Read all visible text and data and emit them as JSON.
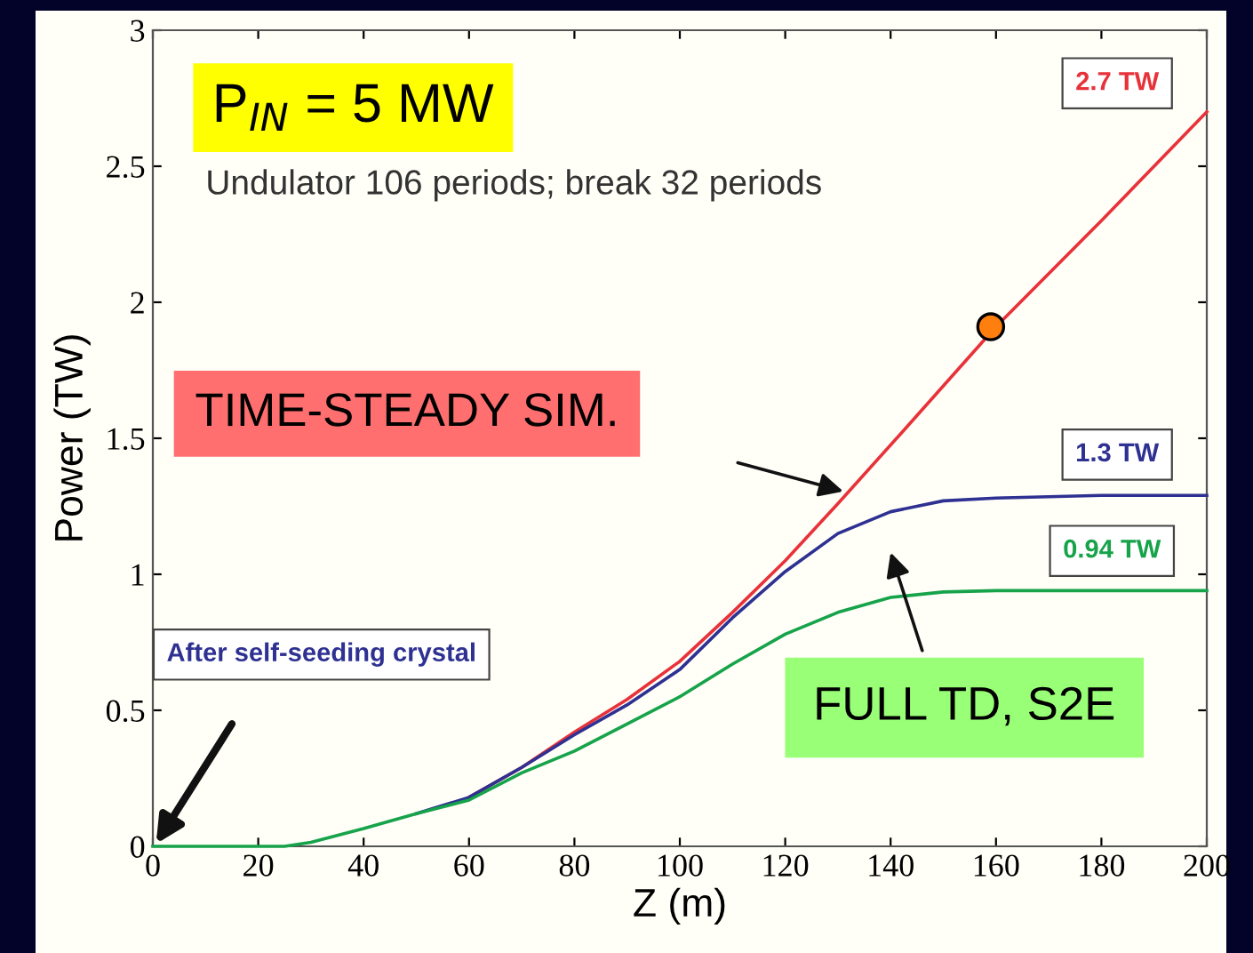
{
  "chart_data": {
    "type": "line",
    "xlabel": "Z (m)",
    "ylabel": "Power (TW)",
    "xlim": [
      0,
      200
    ],
    "ylim": [
      0,
      3
    ],
    "xticks": [
      0,
      20,
      40,
      60,
      80,
      100,
      120,
      140,
      160,
      180,
      200
    ],
    "yticks": [
      0,
      0.5,
      1,
      1.5,
      2,
      2.5,
      3
    ],
    "grid": false,
    "legend": false,
    "marker": "none",
    "line_style": "solid",
    "series": [
      {
        "color": "#e8323a",
        "x": [
          60,
          70,
          80,
          90,
          100,
          110,
          120,
          130,
          143,
          160,
          180,
          200
        ],
        "values": [
          0.18,
          0.29,
          0.42,
          0.54,
          0.68,
          0.86,
          1.05,
          1.26,
          1.54,
          1.91,
          2.3,
          2.7
        ]
      },
      {
        "color": "#2e3192",
        "x": [
          50,
          60,
          70,
          80,
          90,
          100,
          110,
          120,
          130,
          140,
          150,
          160,
          180,
          200
        ],
        "values": [
          0.12,
          0.18,
          0.29,
          0.41,
          0.52,
          0.65,
          0.84,
          1.01,
          1.15,
          1.23,
          1.27,
          1.28,
          1.29,
          1.29
        ]
      },
      {
        "color": "#16a34a",
        "x": [
          0,
          20,
          25,
          30,
          40,
          50,
          60,
          70,
          80,
          90,
          100,
          110,
          120,
          130,
          140,
          150,
          160,
          180,
          200
        ],
        "values": [
          0,
          0,
          0,
          0.015,
          0.065,
          0.12,
          0.17,
          0.27,
          0.35,
          0.45,
          0.55,
          0.67,
          0.78,
          0.86,
          0.915,
          0.935,
          0.94,
          0.94,
          0.94
        ]
      },
      {
        "type": "scatter",
        "color": "#ff7f0e",
        "marker": "circle",
        "x": [
          159
        ],
        "values": [
          1.91
        ]
      }
    ],
    "annotations": [
      "2.7 TW",
      "1.3 TW",
      "0.94 TW",
      "P$_{IN}$ = 5 MW",
      "Undulator 106 periods; break 32 periods",
      "TIME-STEADY SIM.",
      "FULL TD, S2E",
      "After self-seeding crystal"
    ]
  }
}
